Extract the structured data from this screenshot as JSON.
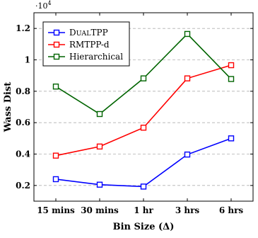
{
  "chart_data": {
    "type": "line",
    "categories": [
      "15 mins",
      "30 mins",
      "1 hr",
      "3 hrs",
      "6 hrs"
    ],
    "xlabel": "Bin Size (Δ)",
    "ylabel": "Wass Dist",
    "y_multiplier": "·10",
    "y_multiplier_exponent": "4",
    "ylim": [
      0.1,
      1.3
    ],
    "yticks": [
      "0.2",
      "0.4",
      "0.6",
      "0.8",
      "1",
      "1.2"
    ],
    "grid": "horizontal dashed",
    "legend_position": "top-left",
    "series": [
      {
        "name": "DualTPP",
        "name_first": "D",
        "name_smallcaps": "ual",
        "name_rest": "TPP",
        "color": "#0000ff",
        "marker": "square",
        "values": [
          0.24,
          0.205,
          0.193,
          0.397,
          0.5
        ]
      },
      {
        "name": "RMTPP-d",
        "color": "#ff0000",
        "marker": "square",
        "values": [
          0.39,
          0.448,
          0.568,
          0.882,
          0.966
        ]
      },
      {
        "name": "Hierarchical",
        "color": "#006400",
        "marker": "square",
        "values": [
          0.83,
          0.655,
          0.882,
          1.165,
          0.878
        ]
      }
    ]
  }
}
